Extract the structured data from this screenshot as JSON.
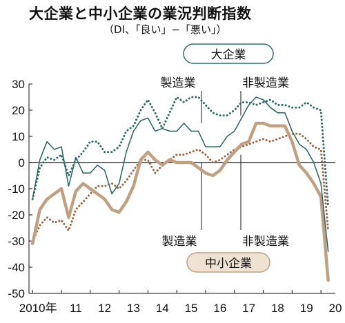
{
  "chart_data": {
    "type": "line",
    "title": "大企業と中小企業の業況判断指数",
    "subtitle": "（DI、「良い」−「悪い」）",
    "ylim": [
      -50,
      30
    ],
    "yticks": [
      30,
      20,
      10,
      0,
      -10,
      -20,
      -30,
      -40,
      -50
    ],
    "xlim": [
      2009.875,
      2020.5
    ],
    "xticks": [
      {
        "label": "2010年",
        "value": 2010
      },
      {
        "label": "11",
        "value": 2011
      },
      {
        "label": "12",
        "value": 2012
      },
      {
        "label": "13",
        "value": 2013
      },
      {
        "label": "14",
        "value": 2014
      },
      {
        "label": "15",
        "value": 2015
      },
      {
        "label": "16",
        "value": 2016
      },
      {
        "label": "17",
        "value": 2017
      },
      {
        "label": "18",
        "value": 2018
      },
      {
        "label": "19",
        "value": 2019
      },
      {
        "label": "20",
        "value": 2020
      }
    ],
    "grid": false,
    "groups": [
      {
        "label": "大企業",
        "color": "#2e6b68"
      },
      {
        "label": "中小企業",
        "color": "#c0a080"
      }
    ],
    "series_labels": {
      "large_manufacturing": "製造業",
      "large_non_manufacturing": "非製造業",
      "small_manufacturing": "製造業",
      "small_non_manufacturing": "非製造業"
    },
    "series": [
      {
        "id": "large_manufacturing",
        "group": "大企業",
        "style": "solid",
        "color": "#2e6b68",
        "x": [
          2010.0,
          2010.25,
          2010.5,
          2010.75,
          2011.0,
          2011.25,
          2011.5,
          2011.75,
          2012.0,
          2012.25,
          2012.5,
          2012.75,
          2013.0,
          2013.25,
          2013.5,
          2013.75,
          2014.0,
          2014.25,
          2014.5,
          2014.75,
          2015.0,
          2015.25,
          2015.5,
          2015.75,
          2016.0,
          2016.25,
          2016.5,
          2016.75,
          2017.0,
          2017.25,
          2017.5,
          2017.75,
          2018.0,
          2018.25,
          2018.5,
          2018.75,
          2019.0,
          2019.25,
          2019.5,
          2019.75,
          2020.0,
          2020.25
        ],
        "values": [
          -14,
          1,
          8,
          5,
          6,
          -9,
          2,
          -4,
          -4,
          -1,
          -3,
          -12,
          -8,
          4,
          12,
          16,
          17,
          12,
          13,
          12,
          12,
          15,
          12,
          12,
          6,
          6,
          6,
          10,
          12,
          17,
          22,
          25,
          24,
          21,
          19,
          19,
          12,
          7,
          5,
          0,
          -8,
          -34
        ]
      },
      {
        "id": "large_non_manufacturing",
        "group": "大企業",
        "style": "dotted",
        "color": "#2e6b68",
        "x": [
          2010.0,
          2010.25,
          2010.5,
          2010.75,
          2011.0,
          2011.25,
          2011.5,
          2011.75,
          2012.0,
          2012.25,
          2012.5,
          2012.75,
          2013.0,
          2013.25,
          2013.5,
          2013.75,
          2014.0,
          2014.25,
          2014.5,
          2014.75,
          2015.0,
          2015.25,
          2015.5,
          2015.75,
          2016.0,
          2016.25,
          2016.5,
          2016.75,
          2017.0,
          2017.25,
          2017.5,
          2017.75,
          2018.0,
          2018.25,
          2018.5,
          2018.75,
          2019.0,
          2019.25,
          2019.5,
          2019.75,
          2020.0,
          2020.25
        ],
        "values": [
          -14,
          -2,
          2,
          1,
          3,
          -5,
          1,
          4,
          8,
          8,
          4,
          4,
          6,
          12,
          14,
          20,
          24,
          19,
          13,
          19,
          25,
          23,
          25,
          25,
          22,
          19,
          18,
          18,
          20,
          23,
          23,
          22,
          23,
          24,
          22,
          22,
          21,
          21,
          23,
          21,
          20,
          -17
        ]
      },
      {
        "id": "small_manufacturing",
        "group": "中小企業",
        "style": "solid",
        "color": "#c0a080",
        "x": [
          2010.0,
          2010.25,
          2010.5,
          2010.75,
          2011.0,
          2011.25,
          2011.5,
          2011.75,
          2012.0,
          2012.25,
          2012.5,
          2012.75,
          2013.0,
          2013.25,
          2013.5,
          2013.75,
          2014.0,
          2014.25,
          2014.5,
          2014.75,
          2015.0,
          2015.25,
          2015.5,
          2015.75,
          2016.0,
          2016.25,
          2016.5,
          2016.75,
          2017.0,
          2017.25,
          2017.5,
          2017.75,
          2018.0,
          2018.25,
          2018.5,
          2018.75,
          2019.0,
          2019.25,
          2019.5,
          2019.75,
          2020.0,
          2020.25
        ],
        "values": [
          -31,
          -18,
          -14,
          -12,
          -10,
          -21,
          -11,
          -8,
          -10,
          -12,
          -14,
          -18,
          -19,
          -15,
          -9,
          1,
          4,
          1,
          -1,
          1,
          0,
          0,
          0,
          -2,
          -4,
          -5,
          -3,
          1,
          4,
          7,
          8,
          15,
          15,
          14,
          14,
          14,
          8,
          -1,
          -4,
          -8,
          -13,
          -45
        ]
      },
      {
        "id": "small_non_manufacturing",
        "group": "中小企業",
        "style": "dotted",
        "color": "#a0643c",
        "x": [
          2010.0,
          2010.25,
          2010.5,
          2010.75,
          2011.0,
          2011.25,
          2011.5,
          2011.75,
          2012.0,
          2012.25,
          2012.5,
          2012.75,
          2013.0,
          2013.25,
          2013.5,
          2013.75,
          2014.0,
          2014.25,
          2014.5,
          2014.75,
          2015.0,
          2015.25,
          2015.5,
          2015.75,
          2016.0,
          2016.25,
          2016.5,
          2016.75,
          2017.0,
          2017.25,
          2017.5,
          2017.75,
          2018.0,
          2018.25,
          2018.5,
          2018.75,
          2019.0,
          2019.25,
          2019.5,
          2019.75,
          2020.0,
          2020.25
        ],
        "values": [
          -30,
          -24,
          -21,
          -23,
          -22,
          -26,
          -18,
          -15,
          -12,
          -9,
          -9,
          -8,
          -10,
          -7,
          -3,
          1,
          1,
          -4,
          -1,
          1,
          3,
          3,
          4,
          5,
          3,
          0,
          1,
          3,
          5,
          6,
          7,
          8,
          9,
          8,
          9,
          10,
          11,
          11,
          9,
          6,
          5,
          -26
        ]
      }
    ]
  }
}
